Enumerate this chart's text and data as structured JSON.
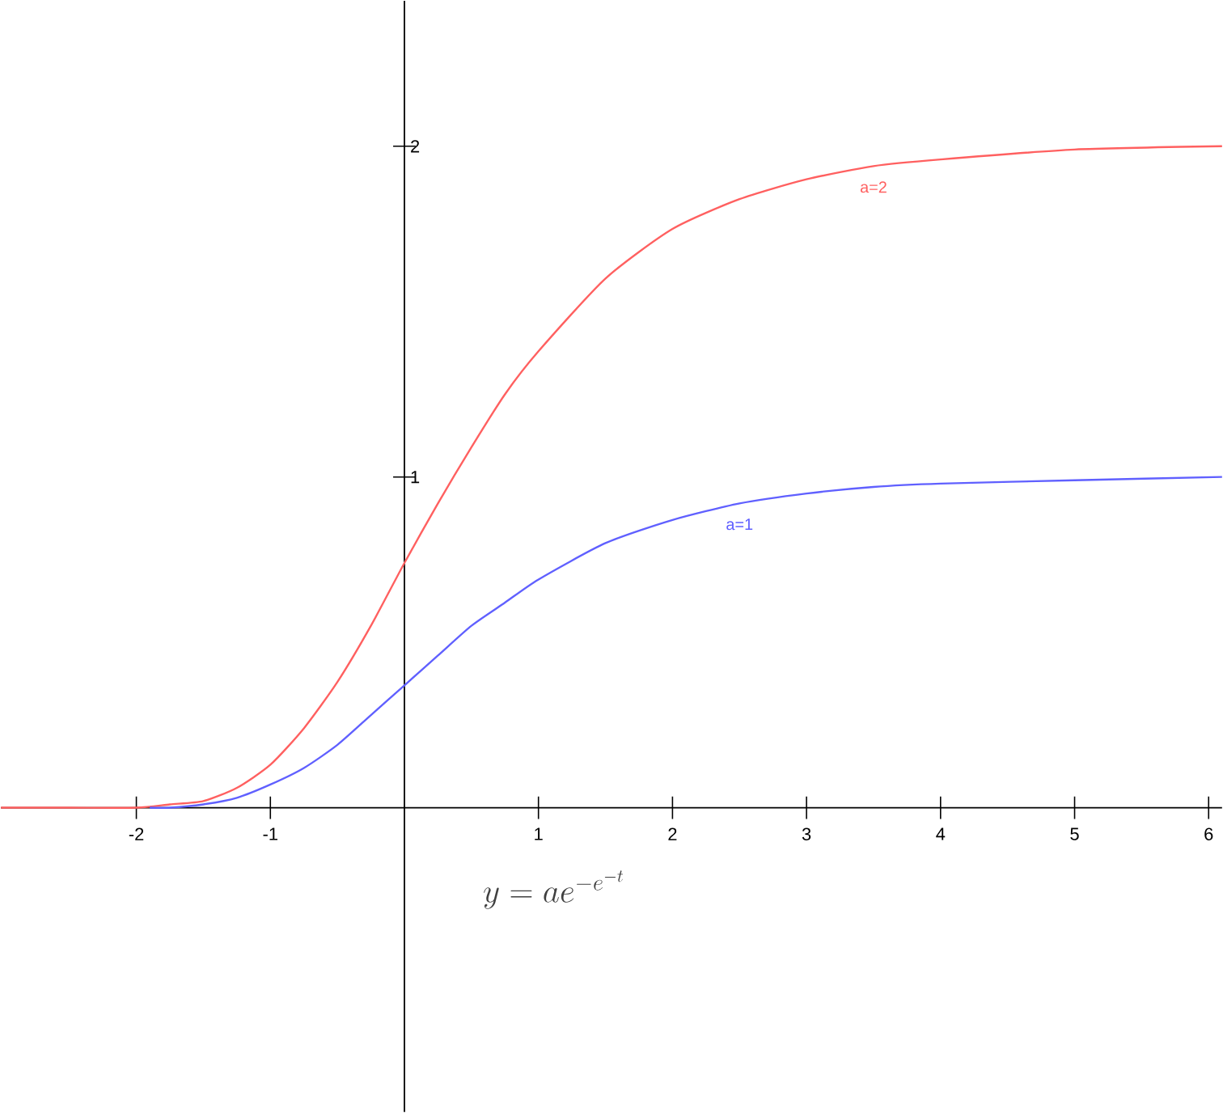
{
  "chart_data": {
    "type": "line",
    "xlim": [
      -3.01,
      6.1
    ],
    "ylim": [
      -0.92,
      2.44
    ],
    "xticks": [
      -2,
      -1,
      1,
      2,
      3,
      4,
      5,
      6
    ],
    "yticks": [
      1,
      2
    ],
    "grid": false,
    "legend": false,
    "marker": "none",
    "line_style": "solid",
    "series": [
      {
        "name": "a=2",
        "color": "#ff6060",
        "x": [
          -3.01,
          -2.5,
          -2,
          -1.75,
          -1.5,
          -1.25,
          -1,
          -0.75,
          -0.5,
          -0.25,
          0,
          0.25,
          0.5,
          0.75,
          1,
          1.5,
          2,
          2.5,
          3,
          3.5,
          4,
          5,
          6.1
        ],
        "values": [
          0,
          0,
          0,
          0.01,
          0.02,
          0.06,
          0.13,
          0.24,
          0.38,
          0.55,
          0.74,
          0.92,
          1.09,
          1.25,
          1.38,
          1.6,
          1.75,
          1.84,
          1.9,
          1.94,
          1.96,
          1.99,
          2.0
        ]
      },
      {
        "name": "a=1",
        "color": "#6060ff",
        "x": [
          -1.9,
          -1.75,
          -1.5,
          -1.25,
          -1,
          -0.75,
          -0.5,
          -0.25,
          0,
          0.25,
          0.5,
          0.75,
          1,
          1.5,
          2,
          2.5,
          3,
          3.5,
          4,
          5,
          6.1
        ],
        "values": [
          0,
          0,
          0.01,
          0.03,
          0.07,
          0.12,
          0.19,
          0.28,
          0.37,
          0.46,
          0.55,
          0.62,
          0.69,
          0.8,
          0.87,
          0.92,
          0.95,
          0.97,
          0.98,
          0.99,
          1.0
        ]
      }
    ],
    "annotations": [
      "y=ae^{-e^{-t}}"
    ]
  }
}
